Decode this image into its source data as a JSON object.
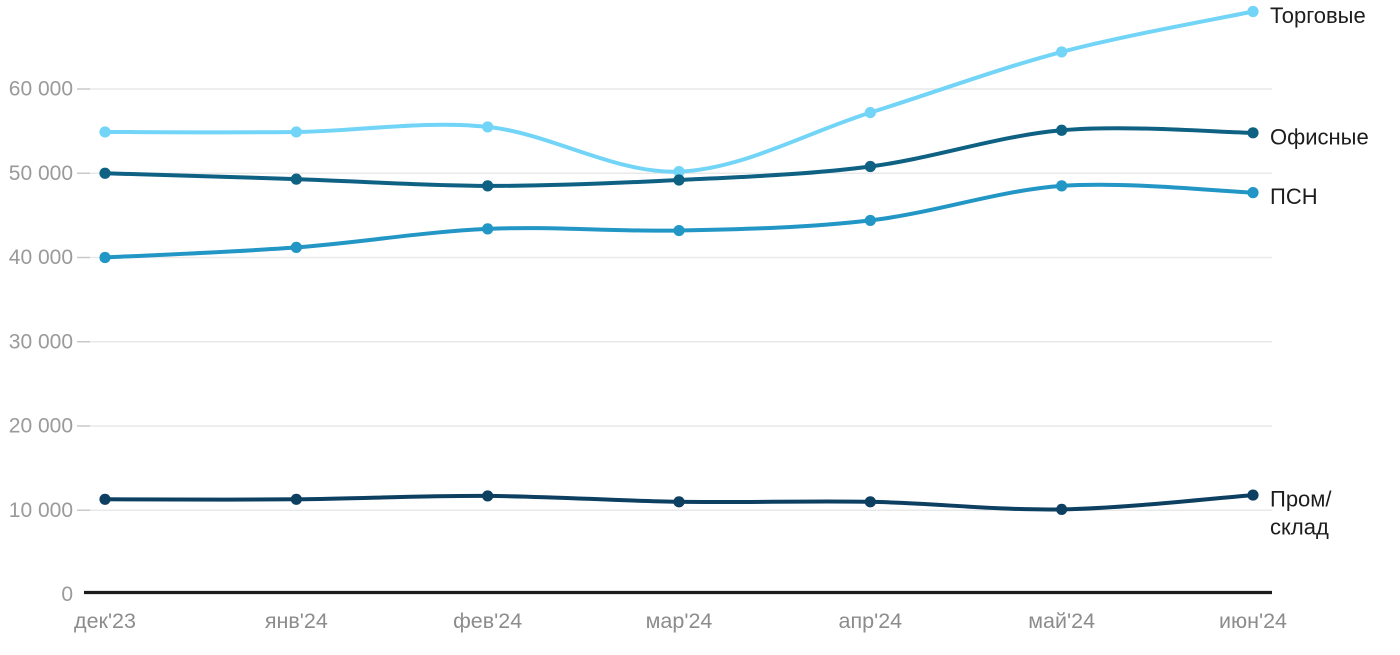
{
  "chart_data": {
    "type": "line",
    "title": "",
    "xlabel": "",
    "ylabel": "",
    "categories": [
      "дек'23",
      "янв'24",
      "фев'24",
      "мар'24",
      "апр'24",
      "май'24",
      "июн'24"
    ],
    "series": [
      {
        "name": "Торговые",
        "color": "#72d4f7",
        "values": [
          54900,
          54900,
          55500,
          50200,
          57200,
          64400,
          69200
        ],
        "label_lines": [
          "Торговые"
        ]
      },
      {
        "name": "Офисные",
        "color": "#0e6183",
        "values": [
          50000,
          49300,
          48500,
          49200,
          50800,
          55100,
          54800
        ],
        "label_lines": [
          "Офисные"
        ]
      },
      {
        "name": "ПСН",
        "color": "#2296c5",
        "values": [
          40000,
          41200,
          43400,
          43200,
          44400,
          48500,
          47700
        ],
        "label_lines": [
          "ПСН"
        ]
      },
      {
        "name": "Пром/склад",
        "color": "#0d3f61",
        "values": [
          11300,
          11300,
          11700,
          11000,
          11000,
          10100,
          11800
        ],
        "label_lines": [
          "Пром/",
          "склад"
        ]
      }
    ],
    "y_axis": {
      "ticks": [
        {
          "value": 0,
          "label": "0"
        },
        {
          "value": 10000,
          "label": "10 000"
        },
        {
          "value": 20000,
          "label": "20 000"
        },
        {
          "value": 30000,
          "label": "30 000"
        },
        {
          "value": 40000,
          "label": "40 000"
        },
        {
          "value": 50000,
          "label": "50 000"
        },
        {
          "value": 60000,
          "label": "60 000"
        }
      ],
      "range": [
        0,
        60000
      ]
    },
    "grid": "horizontal",
    "legend_position": "line-end-labels",
    "palette": {
      "background": "#ffffff",
      "gridline": "#e9e9e9",
      "gridline_tick": "#c9c9c9",
      "axis_line": "#1c1c1c",
      "y_tick_label": "#9a9a9a",
      "x_tick_label": "#8c8c8c",
      "series_label": "#1d1d1d"
    }
  }
}
